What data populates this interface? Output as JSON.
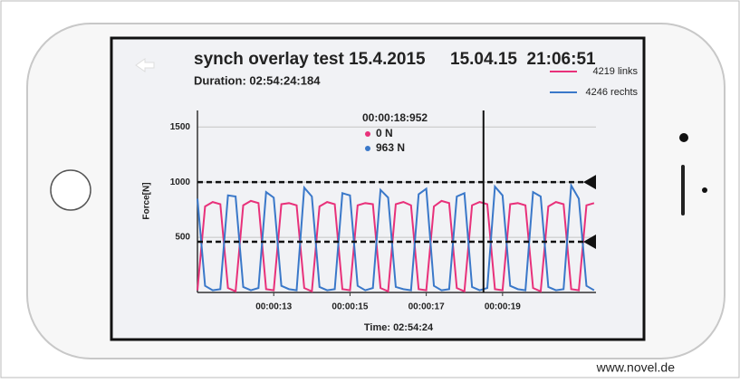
{
  "chart_data": {
    "type": "line",
    "title": "synch overlay test 15.4.2015",
    "timestamp": "15.04.15  21:06:51",
    "subtitle": "Duration: 02:54:24:184",
    "y_label": "Force[N]",
    "x_label": "Time: 02:54:24",
    "cursor_label": "00:00:18:952",
    "cursor_readouts": [
      "0 N",
      "963 N"
    ],
    "cursor_x": 18.5,
    "thresholds": [
      1000,
      460
    ],
    "footer": "www.novel.de",
    "xlim": [
      11,
      21.45
    ],
    "xticks": [
      {
        "value": 13,
        "label": "00:00:13"
      },
      {
        "value": 15,
        "label": "00:00:15"
      },
      {
        "value": 17,
        "label": "00:00:17"
      },
      {
        "value": 19,
        "label": "00:00:19"
      }
    ],
    "ylim": [
      0,
      1650
    ],
    "yticks": [
      500,
      1000,
      1500
    ],
    "grid": true,
    "legend": "top-right",
    "x": [
      11.0,
      11.2,
      11.4,
      11.6,
      11.8,
      12.0,
      12.2,
      12.4,
      12.6,
      12.8,
      13.0,
      13.2,
      13.4,
      13.6,
      13.8,
      14.0,
      14.2,
      14.4,
      14.6,
      14.8,
      15.0,
      15.2,
      15.4,
      15.6,
      15.8,
      16.0,
      16.2,
      16.4,
      16.6,
      16.8,
      17.0,
      17.2,
      17.4,
      17.6,
      17.8,
      18.0,
      18.2,
      18.4,
      18.6,
      18.8,
      19.0,
      19.2,
      19.4,
      19.6,
      19.8,
      20.0,
      20.2,
      20.4,
      20.6,
      20.8,
      21.0,
      21.2,
      21.4
    ],
    "series": [
      {
        "name": "4219 links",
        "color": "#e8317a",
        "values": [
          20,
          780,
          820,
          800,
          40,
          10,
          790,
          830,
          810,
          30,
          20,
          800,
          810,
          790,
          40,
          10,
          780,
          820,
          800,
          30,
          20,
          790,
          810,
          800,
          40,
          10,
          800,
          820,
          790,
          30,
          20,
          780,
          830,
          810,
          40,
          10,
          790,
          820,
          800,
          30,
          20,
          800,
          810,
          790,
          40,
          10,
          780,
          820,
          800,
          30,
          20,
          790,
          810
        ]
      },
      {
        "name": "4246 rechts",
        "color": "#3a78c9",
        "values": [
          850,
          60,
          20,
          30,
          880,
          870,
          50,
          20,
          40,
          910,
          860,
          60,
          30,
          20,
          950,
          870,
          50,
          20,
          30,
          900,
          880,
          60,
          20,
          40,
          930,
          860,
          50,
          30,
          20,
          890,
          940,
          60,
          20,
          30,
          870,
          900,
          50,
          20,
          40,
          960,
          880,
          60,
          30,
          20,
          910,
          870,
          50,
          20,
          30,
          970,
          850,
          60,
          20
        ]
      }
    ]
  }
}
